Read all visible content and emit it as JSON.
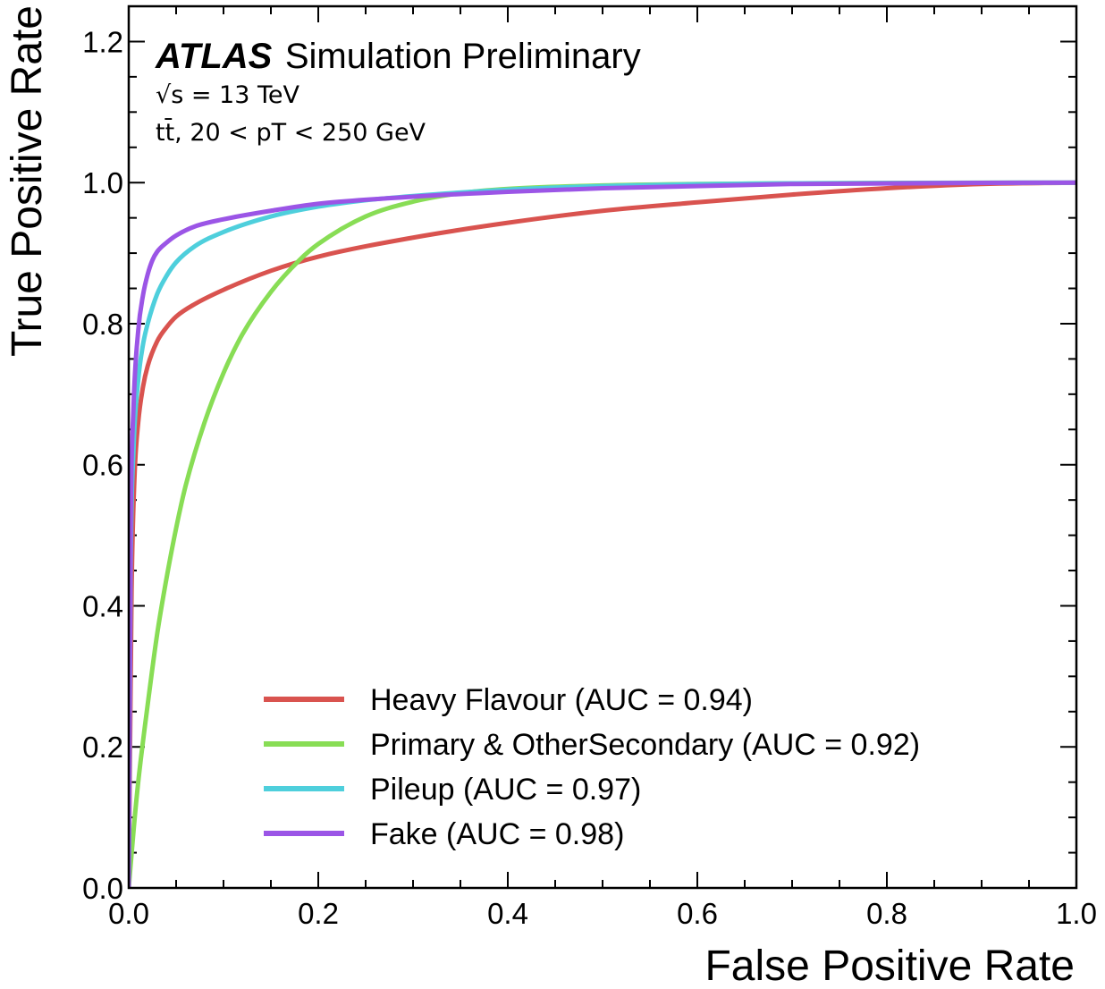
{
  "chart_data": {
    "type": "line",
    "title": "",
    "xlabel": "False Positive Rate",
    "ylabel": "True Positive Rate",
    "xlim": [
      0.0,
      1.0
    ],
    "ylim": [
      0.0,
      1.25
    ],
    "x_ticks": [
      "0.0",
      "0.2",
      "0.4",
      "0.6",
      "0.8",
      "1.0"
    ],
    "y_ticks": [
      "0.0",
      "0.2",
      "0.4",
      "0.6",
      "0.8",
      "1.0",
      "1.2"
    ],
    "grid": false,
    "legend_position": "lower-right",
    "annotations": {
      "experiment": "ATLAS",
      "status": "Simulation Preliminary",
      "energy": "√s = 13 TeV",
      "selection": "tt̄, 20 < pT < 250 GeV"
    },
    "series": [
      {
        "name": "Heavy Flavour (AUC = 0.94)",
        "color": "#d9534f",
        "x": [
          0.0,
          0.003,
          0.006,
          0.01,
          0.015,
          0.02,
          0.03,
          0.04,
          0.05,
          0.07,
          0.1,
          0.15,
          0.2,
          0.3,
          0.4,
          0.5,
          0.6,
          0.7,
          0.8,
          0.9,
          1.0
        ],
        "y": [
          0.0,
          0.42,
          0.58,
          0.66,
          0.71,
          0.74,
          0.775,
          0.795,
          0.81,
          0.828,
          0.848,
          0.875,
          0.895,
          0.922,
          0.943,
          0.96,
          0.972,
          0.983,
          0.992,
          0.998,
          1.0
        ]
      },
      {
        "name": "Primary & OtherSecondary (AUC = 0.92)",
        "color": "#88dd55",
        "x": [
          0.0,
          0.005,
          0.01,
          0.02,
          0.03,
          0.04,
          0.05,
          0.06,
          0.08,
          0.1,
          0.12,
          0.15,
          0.18,
          0.2,
          0.25,
          0.3,
          0.35,
          0.4,
          0.5,
          0.6,
          0.8,
          1.0
        ],
        "y": [
          0.0,
          0.08,
          0.15,
          0.26,
          0.36,
          0.44,
          0.51,
          0.57,
          0.66,
          0.73,
          0.785,
          0.845,
          0.89,
          0.913,
          0.952,
          0.973,
          0.985,
          0.991,
          0.996,
          0.998,
          0.9995,
          1.0
        ]
      },
      {
        "name": "Pileup (AUC = 0.97)",
        "color": "#4ecfdc",
        "x": [
          0.0,
          0.002,
          0.005,
          0.01,
          0.015,
          0.02,
          0.03,
          0.04,
          0.05,
          0.07,
          0.1,
          0.15,
          0.2,
          0.25,
          0.3,
          0.4,
          0.5,
          0.7,
          1.0
        ],
        "y": [
          0.0,
          0.45,
          0.62,
          0.72,
          0.77,
          0.8,
          0.842,
          0.868,
          0.887,
          0.91,
          0.93,
          0.952,
          0.966,
          0.975,
          0.981,
          0.99,
          0.995,
          0.999,
          1.0
        ]
      },
      {
        "name": "Fake (AUC = 0.98)",
        "color": "#9b55e6",
        "x": [
          0.0,
          0.002,
          0.005,
          0.01,
          0.015,
          0.02,
          0.025,
          0.03,
          0.04,
          0.05,
          0.07,
          0.1,
          0.15,
          0.2,
          0.3,
          0.4,
          0.5,
          0.7,
          1.0
        ],
        "y": [
          0.0,
          0.5,
          0.68,
          0.79,
          0.84,
          0.87,
          0.89,
          0.902,
          0.915,
          0.925,
          0.938,
          0.948,
          0.96,
          0.97,
          0.98,
          0.987,
          0.992,
          0.998,
          1.0
        ]
      }
    ]
  }
}
